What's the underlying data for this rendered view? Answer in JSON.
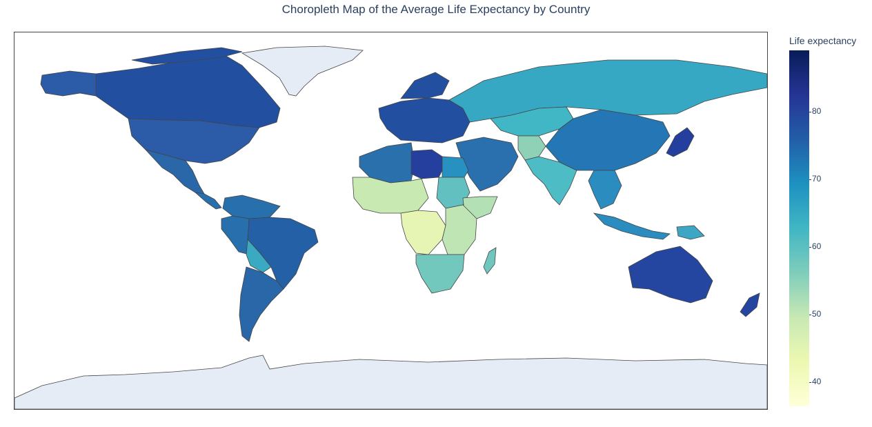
{
  "title": "Choropleth Map of the Average Life Expectancy by Country",
  "colorbar": {
    "title": "Life expectancy",
    "ticks": [
      "80",
      "70",
      "60",
      "50",
      "40"
    ],
    "range": [
      36.3,
      89.0
    ],
    "colorscale": "YlGnBu",
    "colors": [
      "#ffffd9",
      "#edf8b1",
      "#c7e9b4",
      "#7fcdbb",
      "#41b6c4",
      "#1d91c0",
      "#225ea8",
      "#253494",
      "#081d58"
    ]
  },
  "map": {
    "projection": "equirectangular",
    "land_color": "#e5ecf6",
    "ocean_color": "#ffffff",
    "countries": [
      {
        "name": "Canada",
        "life_expectancy": 80.0
      },
      {
        "name": "United States",
        "life_expectancy": 77.5
      },
      {
        "name": "Mexico",
        "life_expectancy": 75.0
      },
      {
        "name": "Brazil",
        "life_expectancy": 74.0
      },
      {
        "name": "Argentina",
        "life_expectancy": 75.0
      },
      {
        "name": "Bolivia",
        "life_expectancy": 63.0
      },
      {
        "name": "Russia",
        "life_expectancy": 65.0
      },
      {
        "name": "China",
        "life_expectancy": 72.0
      },
      {
        "name": "India",
        "life_expectancy": 61.0
      },
      {
        "name": "Australia",
        "life_expectancy": 80.0
      },
      {
        "name": "Libya",
        "life_expectancy": 80.0
      },
      {
        "name": "Algeria",
        "life_expectancy": 72.0
      },
      {
        "name": "Egypt",
        "life_expectancy": 69.0
      },
      {
        "name": "Sudan",
        "life_expectancy": 58.0
      },
      {
        "name": "South Africa",
        "life_expectancy": 56.0
      },
      {
        "name": "DR Congo",
        "life_expectancy": 45.0
      },
      {
        "name": "Madagascar",
        "life_expectancy": 59.0
      },
      {
        "name": "Kazakhstan",
        "life_expectancy": 62.0
      },
      {
        "name": "Afghanistan",
        "life_expectancy": 54.0
      },
      {
        "name": "Japan",
        "life_expectancy": 82.0
      },
      {
        "name": "Greenland",
        "life_expectancy": null
      },
      {
        "name": "Antarctica",
        "life_expectancy": null
      }
    ]
  }
}
